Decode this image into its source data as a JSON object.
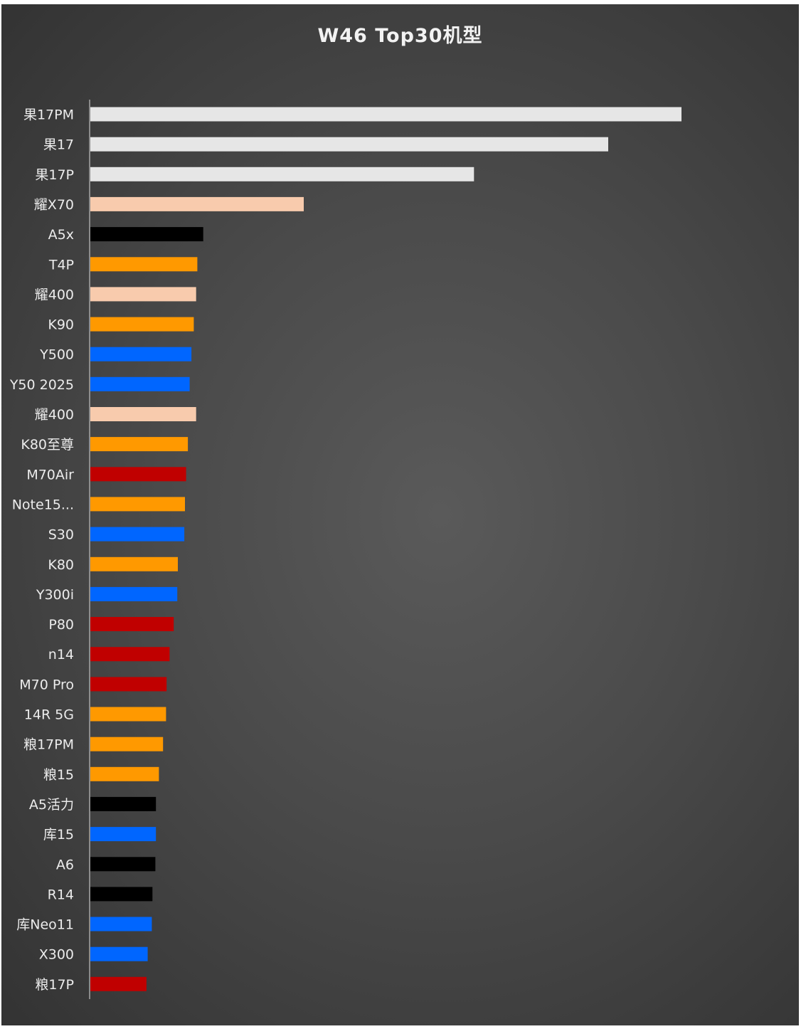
{
  "chart_data": {
    "type": "bar",
    "orientation": "horizontal",
    "title": "W46 Top30机型",
    "xlabel": "",
    "ylabel": "",
    "xlim": [
      0,
      100
    ],
    "grid": false,
    "legend": "none",
    "categories": [
      "果17PM",
      "果17",
      "果17P",
      "耀X70",
      "A5x",
      "T4P",
      "耀400",
      "K90",
      "Y500",
      "Y50 2025",
      "耀400",
      "K80至尊",
      "M70Air",
      "Note15...",
      "S30",
      "K80",
      "Y300i",
      "P80",
      "n14",
      "M70 Pro",
      "14R 5G",
      "粮17PM",
      "粮15",
      "A5活力",
      "库15",
      "A6",
      "R14",
      "库Neo11",
      "X300",
      "粮17P"
    ],
    "values": [
      100,
      87.6,
      64.9,
      36.1,
      19.1,
      18.1,
      17.9,
      17.5,
      17.1,
      16.8,
      17.9,
      16.5,
      16.2,
      16.0,
      15.9,
      14.8,
      14.7,
      14.1,
      13.4,
      12.9,
      12.8,
      12.3,
      11.6,
      11.1,
      11.1,
      11.0,
      10.5,
      10.4,
      9.7,
      9.5
    ],
    "bar_colors": [
      "#e6e6e6",
      "#e6e6e6",
      "#e6e6e6",
      "#f8cbad",
      "#000000",
      "#ff9900",
      "#f8cbad",
      "#ff9900",
      "#0066ff",
      "#0066ff",
      "#f8cbad",
      "#ff9900",
      "#c00000",
      "#ff9900",
      "#0066ff",
      "#ff9900",
      "#0066ff",
      "#c00000",
      "#c00000",
      "#c00000",
      "#ff9900",
      "#ff9900",
      "#ff9900",
      "#000000",
      "#0066ff",
      "#000000",
      "#000000",
      "#0066ff",
      "#0066ff",
      "#c00000"
    ]
  },
  "colors": {
    "background": "#4a4a4a",
    "text": "#ececec",
    "axis": "#a6a6a6"
  }
}
